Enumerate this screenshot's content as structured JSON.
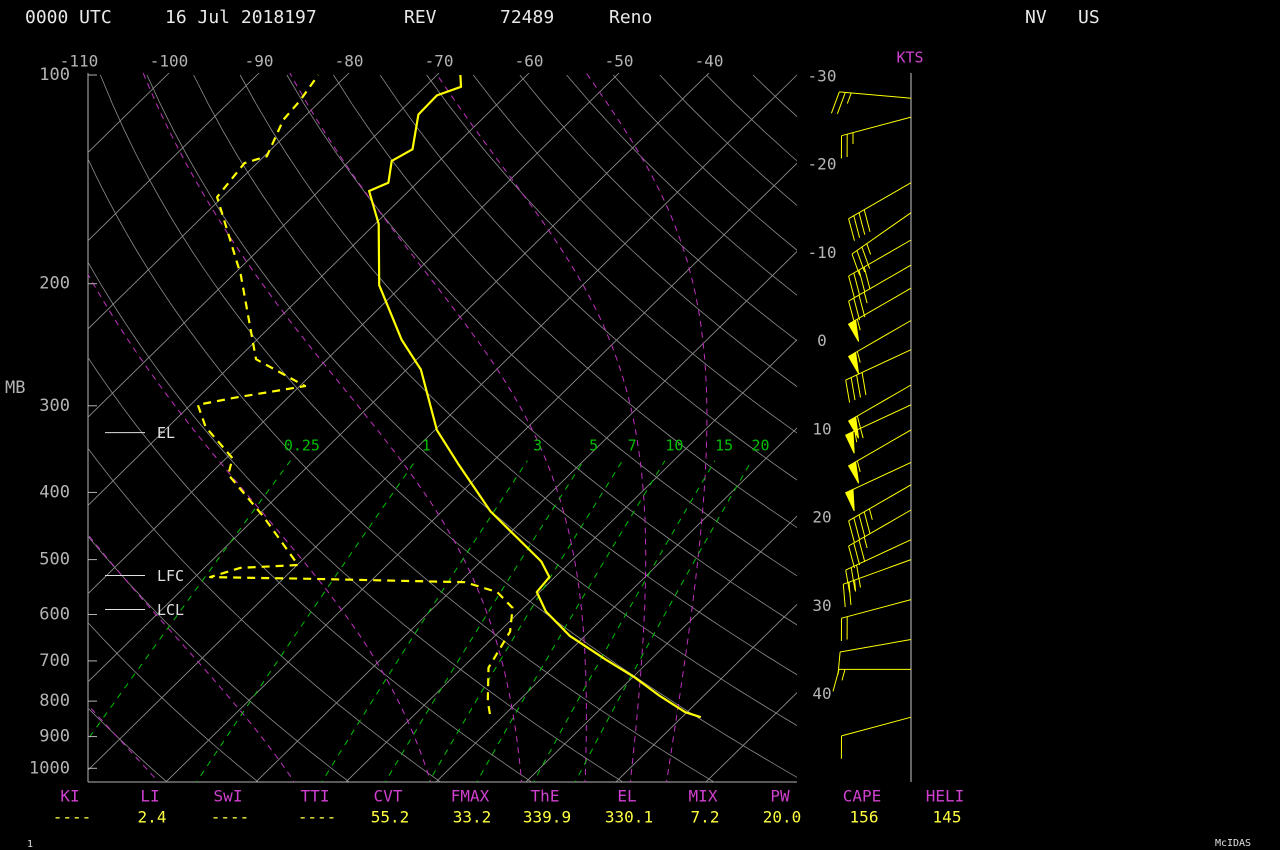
{
  "chart_data": {
    "type": "skewt",
    "header": {
      "time": "0000 UTC",
      "date": "16 Jul 2018197",
      "station_id": "REV",
      "wmo": "72489",
      "name": "Reno",
      "state": "NV",
      "country": "US"
    },
    "y_axis_label": "MB",
    "ylim": [
      1050,
      100
    ],
    "yticks": [
      100,
      200,
      300,
      400,
      500,
      600,
      700,
      800,
      900,
      1000
    ],
    "xticks": [
      -110,
      -100,
      -90,
      -80,
      -70,
      -60,
      -50,
      -40
    ],
    "isotherm_labels_right": [
      -30,
      -20,
      -10,
      0,
      10,
      20,
      30,
      40
    ],
    "mixing_ratios": [
      0.25,
      1,
      3,
      5,
      7,
      10,
      15,
      20
    ],
    "temperature": {
      "color": "#ffff00",
      "pressure": [
        844,
        830,
        787,
        740,
        697,
        644,
        594,
        557,
        530,
        503,
        426,
        365,
        325,
        266,
        241,
        201,
        164,
        147,
        143,
        133,
        128,
        114,
        107,
        104,
        100
      ],
      "values": [
        32.1,
        29.8,
        25.2,
        20.3,
        15.0,
        8.3,
        2.9,
        -0.3,
        -0.6,
        -3.3,
        -14.6,
        -23.4,
        -29.8,
        -38.4,
        -43.9,
        -52.6,
        -59.6,
        -64.4,
        -63.2,
        -65.3,
        -64.3,
        -67.6,
        -67.7,
        -66,
        -67.4
      ]
    },
    "dewpoint": {
      "color": "#ffff00",
      "pressure": [
        835,
        800,
        716,
        635,
        587,
        557,
        539,
        533,
        530,
        514,
        509,
        433,
        377,
        357,
        322,
        299,
        292,
        281,
        257,
        194,
        150,
        134,
        131,
        116,
        109,
        100
      ],
      "values": [
        8.3,
        6.6,
        2.9,
        1.2,
        -1.2,
        -4.7,
        -9.4,
        -27,
        -38.3,
        -36,
        -29.9,
        -39.3,
        -47.9,
        -49.3,
        -55.8,
        -59.2,
        -55.9,
        -49.4,
        -57.9,
        -69.2,
        -80.6,
        -81.4,
        -79.7,
        -82,
        -82.3,
        -83.2
      ]
    },
    "levels": [
      {
        "label": "EL",
        "pressure": 328
      },
      {
        "label": "LFC",
        "pressure": 527
      },
      {
        "label": "LCL",
        "pressure": 590
      }
    ],
    "wind_unit": "KTS",
    "winds": {
      "color": "#ffff00",
      "pressure": [
        108,
        115,
        143,
        158,
        173,
        188,
        203,
        226,
        249,
        280,
        299,
        325,
        362,
        390,
        424,
        468,
        500,
        571,
        652,
        720,
        844
      ],
      "direction": [
        275,
        255,
        240,
        235,
        240,
        240,
        240,
        240,
        245,
        240,
        245,
        240,
        245,
        240,
        240,
        245,
        250,
        255,
        260,
        270,
        255
      ],
      "speed": [
        25,
        25,
        40,
        35,
        40,
        35,
        55,
        55,
        40,
        60,
        55,
        55,
        50,
        45,
        35,
        30,
        25,
        20,
        10,
        15,
        10
      ]
    },
    "indices": [
      {
        "name": "KI",
        "value": "----"
      },
      {
        "name": "LI",
        "value": "2.4"
      },
      {
        "name": "SwI",
        "value": "----"
      },
      {
        "name": "TTI",
        "value": "----"
      },
      {
        "name": "CVT",
        "value": "55.2"
      },
      {
        "name": "FMAX",
        "value": "33.2"
      },
      {
        "name": "ThE",
        "value": "339.9"
      },
      {
        "name": "EL",
        "value": "330.1"
      },
      {
        "name": "MIX",
        "value": "7.2"
      },
      {
        "name": "PW",
        "value": "20.0"
      },
      {
        "name": "CAPE",
        "value": "156"
      },
      {
        "name": "HELI",
        "value": "145"
      }
    ],
    "footer_left": "1",
    "footer_right": "McIDAS"
  }
}
